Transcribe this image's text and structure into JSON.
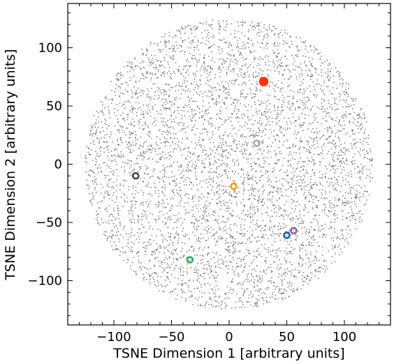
{
  "chart_data": {
    "type": "scatter",
    "title": "",
    "xlabel": "TSNE Dimension 1 [arbitrary units]",
    "ylabel": "TSNE Dimension 2 [arbitrary units]",
    "xlim": [
      -140,
      140
    ],
    "ylim": [
      -138,
      138
    ],
    "xticks": [
      -100,
      -50,
      0,
      50,
      100
    ],
    "yticks": [
      -100,
      -50,
      0,
      50,
      100
    ],
    "xtick_labels": [
      "−100",
      "−50",
      "0",
      "50",
      "100"
    ],
    "ytick_labels": [
      "−100",
      "−50",
      "0",
      "50",
      "100"
    ],
    "grid": false,
    "background_cloud": {
      "shape": "disk",
      "center": [
        0,
        0
      ],
      "radius": 125,
      "color": "#555555"
    },
    "highlighted_points": [
      {
        "x": 30,
        "y": 71,
        "color": "#ff3300"
      },
      {
        "x": 24,
        "y": 18,
        "color": "#aaaaaa"
      },
      {
        "x": -81,
        "y": -10,
        "color": "#444444"
      },
      {
        "x": 4,
        "y": -19,
        "color": "#f39c12"
      },
      {
        "x": 50,
        "y": -61,
        "color": "#1f5fa6"
      },
      {
        "x": 56,
        "y": -57,
        "color": "#8e5ea2"
      },
      {
        "x": -34,
        "y": -82,
        "color": "#1abc5a"
      }
    ]
  }
}
